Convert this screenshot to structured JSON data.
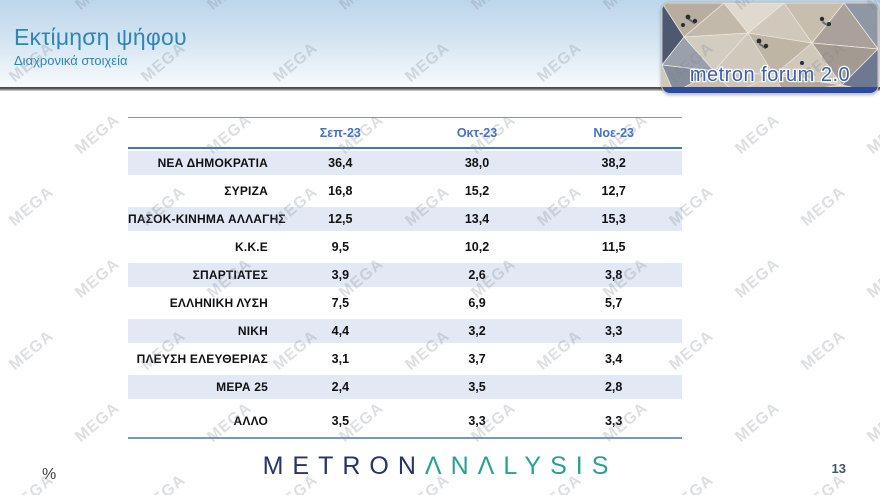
{
  "header": {
    "title": "Εκτίμηση ψήφου",
    "subtitle": "Διαχρονικά στοιχεία",
    "logo_text": "metron forum 2.0"
  },
  "watermark": {
    "text": "MEGA"
  },
  "chart_data": {
    "type": "table",
    "title": "Εκτίμηση ψήφου",
    "subtitle": "Διαχρονικά στοιχεία",
    "columns": [
      "Σεπ-23",
      "Οκτ-23",
      "Νοε-23"
    ],
    "rows": [
      {
        "label": "ΝΕΑ ΔΗΜΟΚΡΑΤΙΑ",
        "values": [
          "36,4",
          "38,0",
          "38,2"
        ],
        "shaded": true,
        "gap_before": false
      },
      {
        "label": "ΣΥΡΙΖΑ",
        "values": [
          "16,8",
          "15,2",
          "12,7"
        ],
        "shaded": false,
        "gap_before": false
      },
      {
        "label": "ΠΑΣΟΚ-ΚΙΝΗΜΑ ΑΛΛΑΓΗΣ",
        "values": [
          "12,5",
          "13,4",
          "15,3"
        ],
        "shaded": true,
        "gap_before": false
      },
      {
        "label": "Κ.Κ.Ε",
        "values": [
          "9,5",
          "10,2",
          "11,5"
        ],
        "shaded": false,
        "gap_before": false
      },
      {
        "label": "ΣΠΑΡΤΙΑΤΕΣ",
        "values": [
          "3,9",
          "2,6",
          "3,8"
        ],
        "shaded": true,
        "gap_before": false
      },
      {
        "label": "ΕΛΛΗΝΙΚΗ ΛΥΣΗ",
        "values": [
          "7,5",
          "6,9",
          "5,7"
        ],
        "shaded": false,
        "gap_before": false
      },
      {
        "label": "ΝΙΚΗ",
        "values": [
          "4,4",
          "3,2",
          "3,3"
        ],
        "shaded": true,
        "gap_before": false
      },
      {
        "label": "ΠΛΕΥΣΗ ΕΛΕΥΘΕΡΙΑΣ",
        "values": [
          "3,1",
          "3,7",
          "3,4"
        ],
        "shaded": false,
        "gap_before": false
      },
      {
        "label": "ΜΕΡΑ 25",
        "values": [
          "2,4",
          "3,5",
          "2,8"
        ],
        "shaded": true,
        "gap_before": false
      },
      {
        "label": "ΑΛΛΟ",
        "values": [
          "3,5",
          "3,3",
          "3,3"
        ],
        "shaded": false,
        "gap_before": true
      }
    ],
    "colors": {
      "shaded_row": "#e3e8f5",
      "column_header_text": "#4472c4",
      "table_border": "#7b94cc",
      "title_text": "#2e86b5",
      "brand_navy": "#283467",
      "brand_teal": "#28a193"
    }
  },
  "footer": {
    "percent_label": "%",
    "page_number": "13",
    "brand_part1": "METRON",
    "brand_part2": "ΛNΛLYSIS"
  }
}
